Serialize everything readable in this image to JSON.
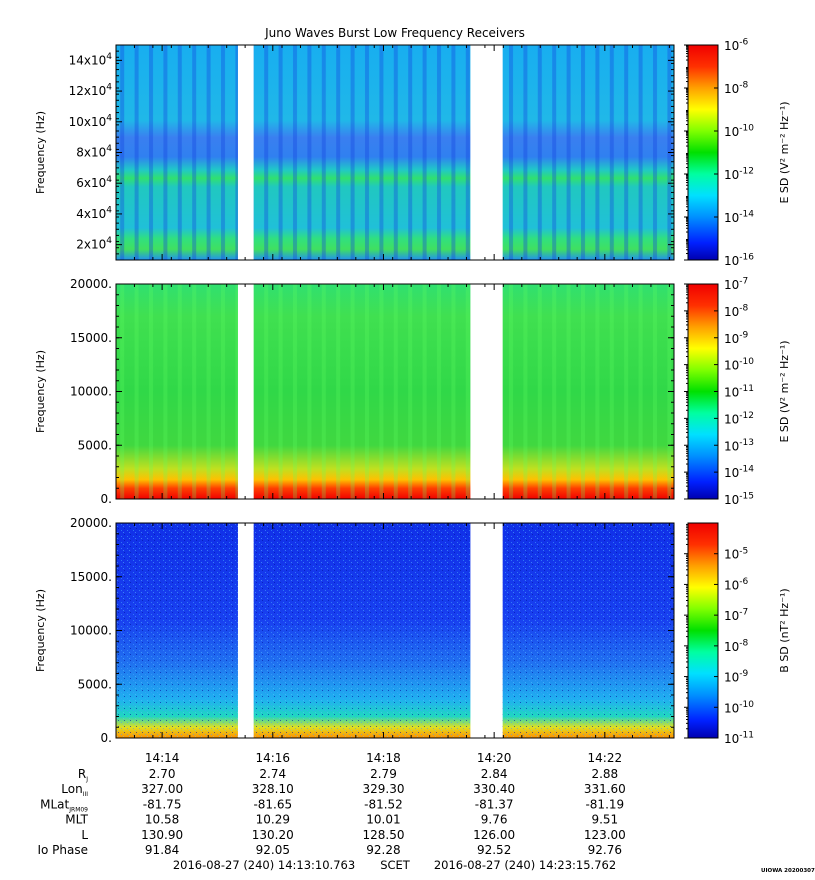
{
  "title": "Juno Waves Burst Low Frequency Receivers",
  "chart_data": [
    {
      "type": "heatmap",
      "panel": "upper",
      "ylabel": "Frequency (Hz)",
      "ylim": [
        10000,
        150000
      ],
      "yticks": [
        {
          "value": 20000,
          "base": "2x10",
          "exp": "4"
        },
        {
          "value": 40000,
          "base": "4x10",
          "exp": "4"
        },
        {
          "value": 60000,
          "base": "6x10",
          "exp": "4"
        },
        {
          "value": 80000,
          "base": "8x10",
          "exp": "4"
        },
        {
          "value": 100000,
          "base": "10x10",
          "exp": "4"
        },
        {
          "value": 120000,
          "base": "12x10",
          "exp": "4"
        },
        {
          "value": 140000,
          "base": "14x10",
          "exp": "4"
        }
      ],
      "colorbar": {
        "label": "E SD (V² m⁻² Hz⁻¹)",
        "scale": "log",
        "range": [
          1e-16,
          1e-06
        ],
        "ticks": [
          {
            "base": "10",
            "exp": "-6",
            "value": 1e-06
          },
          {
            "base": "10",
            "exp": "-8",
            "value": 1e-08
          },
          {
            "base": "10",
            "exp": "-10",
            "value": 1e-10
          },
          {
            "base": "10",
            "exp": "-12",
            "value": 1e-12
          },
          {
            "base": "10",
            "exp": "-14",
            "value": 1e-14
          },
          {
            "base": "10",
            "exp": "-16",
            "value": 1e-16
          }
        ]
      },
      "data_gaps": [
        [
          "14:15:23",
          "14:15:40"
        ],
        [
          "14:19:35",
          "14:20:10"
        ]
      ]
    },
    {
      "type": "heatmap",
      "panel": "middle",
      "ylabel": "Frequency (Hz)",
      "ylim": [
        0,
        20000
      ],
      "yticks": [
        {
          "value": 0,
          "label": "0."
        },
        {
          "value": 5000,
          "label": "5000."
        },
        {
          "value": 10000,
          "label": "10000."
        },
        {
          "value": 15000,
          "label": "15000."
        },
        {
          "value": 20000,
          "label": "20000."
        }
      ],
      "colorbar": {
        "label": "E SD (V² m⁻² Hz⁻¹)",
        "scale": "log",
        "range": [
          1e-15,
          1e-07
        ],
        "ticks": [
          {
            "base": "10",
            "exp": "-7",
            "value": 1e-07
          },
          {
            "base": "10",
            "exp": "-8",
            "value": 1e-08
          },
          {
            "base": "10",
            "exp": "-9",
            "value": 1e-09
          },
          {
            "base": "10",
            "exp": "-10",
            "value": 1e-10
          },
          {
            "base": "10",
            "exp": "-11",
            "value": 1e-11
          },
          {
            "base": "10",
            "exp": "-12",
            "value": 1e-12
          },
          {
            "base": "10",
            "exp": "-13",
            "value": 1e-13
          },
          {
            "base": "10",
            "exp": "-14",
            "value": 1e-14
          },
          {
            "base": "10",
            "exp": "-15",
            "value": 1e-15
          }
        ]
      },
      "data_gaps": [
        [
          "14:15:23",
          "14:15:40"
        ],
        [
          "14:19:35",
          "14:20:10"
        ]
      ]
    },
    {
      "type": "heatmap",
      "panel": "lower",
      "ylabel": "Frequency (Hz)",
      "ylim": [
        0,
        20000
      ],
      "yticks": [
        {
          "value": 0,
          "label": "0."
        },
        {
          "value": 5000,
          "label": "5000."
        },
        {
          "value": 10000,
          "label": "10000."
        },
        {
          "value": 15000,
          "label": "15000."
        },
        {
          "value": 20000,
          "label": "20000."
        }
      ],
      "colorbar": {
        "label": "B SD (nT² Hz⁻¹)",
        "scale": "log",
        "range": [
          1e-11,
          0.0001
        ],
        "ticks": [
          {
            "base": "10",
            "exp": "-5",
            "value": 1e-05
          },
          {
            "base": "10",
            "exp": "-6",
            "value": 1e-06
          },
          {
            "base": "10",
            "exp": "-7",
            "value": 1e-07
          },
          {
            "base": "10",
            "exp": "-8",
            "value": 1e-08
          },
          {
            "base": "10",
            "exp": "-9",
            "value": 1e-09
          },
          {
            "base": "10",
            "exp": "-10",
            "value": 1e-10
          },
          {
            "base": "10",
            "exp": "-11",
            "value": 1e-11
          }
        ]
      },
      "data_gaps": [
        [
          "14:15:23",
          "14:15:40"
        ],
        [
          "14:19:35",
          "14:20:10"
        ]
      ]
    }
  ],
  "time_axis": {
    "range": [
      "14:13:10.763",
      "14:23:15.762"
    ],
    "ticks": [
      {
        "value": "14:14",
        "seconds": 50
      },
      {
        "value": "14:16",
        "seconds": 170
      },
      {
        "value": "14:18",
        "seconds": 290
      },
      {
        "value": "14:20",
        "seconds": 410
      },
      {
        "value": "14:22",
        "seconds": 530
      }
    ]
  },
  "ephemeris": {
    "rows": [
      {
        "label": "R",
        "sub": "J",
        "values": [
          "2.70",
          "2.74",
          "2.79",
          "2.84",
          "2.88"
        ]
      },
      {
        "label": "Lon",
        "sub": "III",
        "values": [
          "327.00",
          "328.10",
          "329.30",
          "330.40",
          "331.60"
        ]
      },
      {
        "label": "MLat",
        "sub": "JRM09",
        "values": [
          "-81.75",
          "-81.65",
          "-81.52",
          "-81.37",
          "-81.19"
        ]
      },
      {
        "label": "MLT",
        "sub": "",
        "values": [
          "10.58",
          "10.29",
          "10.01",
          "9.76",
          "9.51"
        ]
      },
      {
        "label": "L",
        "sub": "",
        "values": [
          "130.90",
          "130.20",
          "128.50",
          "126.00",
          "123.00"
        ]
      },
      {
        "label": "Io Phase",
        "sub": "",
        "values": [
          "91.84",
          "92.05",
          "92.28",
          "92.52",
          "92.76"
        ]
      }
    ]
  },
  "footer": {
    "start": "2016-08-27 (240) 14:13:10.763",
    "mid": "SCET",
    "end": "2016-08-27 (240) 14:23:15.762",
    "stamp": "UIOWA 20200307"
  }
}
